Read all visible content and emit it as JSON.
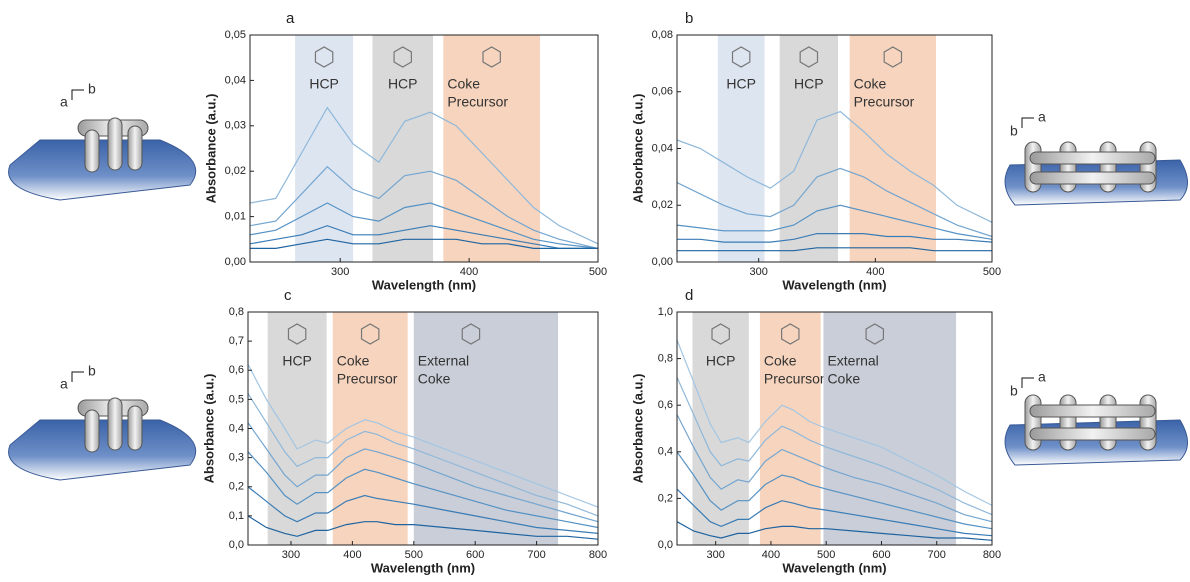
{
  "chart_data": [
    {
      "type": "line",
      "panel": "a",
      "x_label": "Wavelength (nm)",
      "y_label": "Absorbance (a.u.)",
      "xlim": [
        230,
        500
      ],
      "ylim": [
        0,
        0.05
      ],
      "xticks": [
        300,
        400,
        500
      ],
      "yticks": [
        {
          "value": 0,
          "label": "0,00"
        },
        {
          "value": 0.01,
          "label": "0,01"
        },
        {
          "value": 0.02,
          "label": "0,02"
        },
        {
          "value": 0.03,
          "label": "0,03"
        },
        {
          "value": 0.04,
          "label": "0,04"
        },
        {
          "value": 0.05,
          "label": "0,05"
        }
      ],
      "bands": [
        {
          "label": [
            "HCP"
          ],
          "x": [
            265,
            310
          ],
          "color": "#dde5f1"
        },
        {
          "label": [
            "HCP"
          ],
          "x": [
            325,
            372
          ],
          "color": "#d9d9d9"
        },
        {
          "label": [
            "Coke",
            "Precursor"
          ],
          "x": [
            380,
            455
          ],
          "color": "#f7d4be"
        }
      ],
      "x": [
        230,
        250,
        270,
        290,
        310,
        330,
        350,
        370,
        390,
        410,
        430,
        450,
        470,
        500
      ],
      "series": [
        {
          "color": "#8fb8da",
          "values": [
            0.013,
            0.014,
            0.024,
            0.034,
            0.026,
            0.022,
            0.031,
            0.033,
            0.03,
            0.024,
            0.018,
            0.012,
            0.008,
            0.004
          ]
        },
        {
          "color": "#74a6d0",
          "values": [
            0.008,
            0.009,
            0.015,
            0.021,
            0.016,
            0.014,
            0.019,
            0.02,
            0.018,
            0.014,
            0.01,
            0.007,
            0.005,
            0.003
          ]
        },
        {
          "color": "#5592c4",
          "values": [
            0.006,
            0.007,
            0.01,
            0.013,
            0.01,
            0.009,
            0.012,
            0.013,
            0.011,
            0.009,
            0.007,
            0.005,
            0.004,
            0.003
          ]
        },
        {
          "color": "#3a7cb5",
          "values": [
            0.004,
            0.005,
            0.006,
            0.008,
            0.006,
            0.006,
            0.007,
            0.008,
            0.007,
            0.006,
            0.005,
            0.004,
            0.003,
            0.003
          ]
        },
        {
          "color": "#1f64a0",
          "values": [
            0.003,
            0.003,
            0.004,
            0.005,
            0.004,
            0.004,
            0.005,
            0.005,
            0.005,
            0.004,
            0.004,
            0.003,
            0.003,
            0.003
          ]
        }
      ]
    },
    {
      "type": "line",
      "panel": "b",
      "x_label": "Wavelength (nm)",
      "y_label": "Absorbance (a.u.)",
      "xlim": [
        230,
        500
      ],
      "ylim": [
        0,
        0.08
      ],
      "xticks": [
        300,
        400,
        500
      ],
      "yticks": [
        {
          "value": 0,
          "label": "0,00"
        },
        {
          "value": 0.02,
          "label": "0,02"
        },
        {
          "value": 0.04,
          "label": "0,04"
        },
        {
          "value": 0.06,
          "label": "0,06"
        },
        {
          "value": 0.08,
          "label": "0,08"
        }
      ],
      "bands": [
        {
          "label": [
            "HCP"
          ],
          "x": [
            265,
            305
          ],
          "color": "#dde5f1"
        },
        {
          "label": [
            "HCP"
          ],
          "x": [
            318,
            368
          ],
          "color": "#d9d9d9"
        },
        {
          "label": [
            "Coke",
            "Precursor"
          ],
          "x": [
            378,
            452
          ],
          "color": "#f7d4be"
        }
      ],
      "x": [
        230,
        250,
        270,
        290,
        310,
        330,
        350,
        370,
        390,
        410,
        430,
        450,
        470,
        500
      ],
      "series": [
        {
          "color": "#8fb8da",
          "values": [
            0.043,
            0.04,
            0.035,
            0.03,
            0.026,
            0.032,
            0.05,
            0.053,
            0.046,
            0.038,
            0.032,
            0.027,
            0.02,
            0.014
          ]
        },
        {
          "color": "#74a6d0",
          "values": [
            0.028,
            0.024,
            0.02,
            0.017,
            0.016,
            0.02,
            0.03,
            0.033,
            0.03,
            0.025,
            0.021,
            0.017,
            0.013,
            0.009
          ]
        },
        {
          "color": "#5592c4",
          "values": [
            0.013,
            0.012,
            0.011,
            0.011,
            0.011,
            0.013,
            0.018,
            0.02,
            0.018,
            0.016,
            0.014,
            0.012,
            0.01,
            0.008
          ]
        },
        {
          "color": "#3a7cb5",
          "values": [
            0.008,
            0.008,
            0.007,
            0.007,
            0.007,
            0.008,
            0.01,
            0.01,
            0.01,
            0.009,
            0.009,
            0.008,
            0.008,
            0.007
          ]
        },
        {
          "color": "#1f64a0",
          "values": [
            0.004,
            0.004,
            0.004,
            0.004,
            0.004,
            0.004,
            0.005,
            0.005,
            0.005,
            0.005,
            0.005,
            0.004,
            0.004,
            0.004
          ]
        }
      ]
    },
    {
      "type": "line",
      "panel": "c",
      "x_label": "Wavelength (nm)",
      "y_label": "Absorbance (a.u.)",
      "xlim": [
        230,
        800
      ],
      "ylim": [
        0,
        0.8
      ],
      "xticks": [
        300,
        400,
        500,
        600,
        700,
        800
      ],
      "yticks": [
        {
          "value": 0,
          "label": "0,0"
        },
        {
          "value": 0.1,
          "label": "0,1"
        },
        {
          "value": 0.2,
          "label": "0,2"
        },
        {
          "value": 0.3,
          "label": "0,3"
        },
        {
          "value": 0.4,
          "label": "0,4"
        },
        {
          "value": 0.5,
          "label": "0,5"
        },
        {
          "value": 0.6,
          "label": "0,6"
        },
        {
          "value": 0.7,
          "label": "0,7"
        },
        {
          "value": 0.8,
          "label": "0,8"
        }
      ],
      "bands": [
        {
          "label": [
            "HCP"
          ],
          "x": [
            262,
            358
          ],
          "color": "#d9d9d9"
        },
        {
          "label": [
            "Coke",
            "Precursor"
          ],
          "x": [
            368,
            490
          ],
          "color": "#f7d4be"
        },
        {
          "label": [
            "External",
            "Coke"
          ],
          "x": [
            500,
            735
          ],
          "color": "#c9ced8"
        }
      ],
      "x": [
        230,
        260,
        290,
        310,
        340,
        360,
        390,
        420,
        440,
        470,
        500,
        550,
        600,
        650,
        700,
        750,
        800
      ],
      "series": [
        {
          "color": "#a3c6e3",
          "values": [
            0.62,
            0.5,
            0.4,
            0.33,
            0.36,
            0.35,
            0.4,
            0.43,
            0.42,
            0.39,
            0.37,
            0.33,
            0.29,
            0.25,
            0.21,
            0.17,
            0.13
          ]
        },
        {
          "color": "#8fb8da",
          "values": [
            0.52,
            0.42,
            0.32,
            0.27,
            0.3,
            0.3,
            0.36,
            0.39,
            0.38,
            0.35,
            0.33,
            0.29,
            0.25,
            0.21,
            0.17,
            0.14,
            0.1
          ]
        },
        {
          "color": "#74a6d0",
          "values": [
            0.42,
            0.33,
            0.24,
            0.2,
            0.24,
            0.24,
            0.3,
            0.33,
            0.32,
            0.3,
            0.28,
            0.24,
            0.2,
            0.17,
            0.14,
            0.11,
            0.08
          ]
        },
        {
          "color": "#5592c4",
          "values": [
            0.32,
            0.25,
            0.17,
            0.14,
            0.18,
            0.18,
            0.23,
            0.26,
            0.25,
            0.23,
            0.21,
            0.18,
            0.15,
            0.12,
            0.1,
            0.08,
            0.06
          ]
        },
        {
          "color": "#3a7cb5",
          "values": [
            0.2,
            0.15,
            0.1,
            0.08,
            0.11,
            0.11,
            0.15,
            0.17,
            0.16,
            0.15,
            0.14,
            0.12,
            0.1,
            0.08,
            0.06,
            0.05,
            0.04
          ]
        },
        {
          "color": "#1f64a0",
          "values": [
            0.1,
            0.06,
            0.04,
            0.03,
            0.05,
            0.05,
            0.07,
            0.08,
            0.08,
            0.07,
            0.07,
            0.06,
            0.05,
            0.04,
            0.03,
            0.03,
            0.02
          ]
        }
      ]
    },
    {
      "type": "line",
      "panel": "d",
      "x_label": "Wavelength (nm)",
      "y_label": "Absorbance (a.u.)",
      "xlim": [
        230,
        800
      ],
      "ylim": [
        0,
        1.0
      ],
      "xticks": [
        300,
        400,
        500,
        600,
        700,
        800
      ],
      "yticks": [
        {
          "value": 0,
          "label": "0,0"
        },
        {
          "value": 0.2,
          "label": "0,2"
        },
        {
          "value": 0.4,
          "label": "0,4"
        },
        {
          "value": 0.6,
          "label": "0,6"
        },
        {
          "value": 0.8,
          "label": "0,8"
        },
        {
          "value": 1.0,
          "label": "1,0"
        }
      ],
      "bands": [
        {
          "label": [
            "HCP"
          ],
          "x": [
            258,
            360
          ],
          "color": "#d9d9d9"
        },
        {
          "label": [
            "Coke",
            "Precursor"
          ],
          "x": [
            380,
            490
          ],
          "color": "#f7d4be"
        },
        {
          "label": [
            "External",
            "Coke"
          ],
          "x": [
            495,
            735
          ],
          "color": "#c9ced8"
        }
      ],
      "x": [
        230,
        260,
        290,
        310,
        340,
        360,
        390,
        420,
        440,
        470,
        500,
        550,
        600,
        650,
        700,
        750,
        800
      ],
      "series": [
        {
          "color": "#a3c6e3",
          "values": [
            0.88,
            0.7,
            0.52,
            0.44,
            0.46,
            0.44,
            0.53,
            0.6,
            0.58,
            0.53,
            0.5,
            0.46,
            0.42,
            0.36,
            0.3,
            0.23,
            0.17
          ]
        },
        {
          "color": "#8fb8da",
          "values": [
            0.72,
            0.56,
            0.4,
            0.34,
            0.37,
            0.36,
            0.45,
            0.51,
            0.49,
            0.45,
            0.42,
            0.38,
            0.34,
            0.29,
            0.24,
            0.18,
            0.13
          ]
        },
        {
          "color": "#74a6d0",
          "values": [
            0.56,
            0.42,
            0.29,
            0.24,
            0.28,
            0.27,
            0.36,
            0.41,
            0.39,
            0.36,
            0.33,
            0.29,
            0.26,
            0.22,
            0.18,
            0.13,
            0.1
          ]
        },
        {
          "color": "#5592c4",
          "values": [
            0.4,
            0.3,
            0.19,
            0.15,
            0.19,
            0.19,
            0.26,
            0.3,
            0.29,
            0.26,
            0.24,
            0.21,
            0.18,
            0.15,
            0.12,
            0.09,
            0.07
          ]
        },
        {
          "color": "#3a7cb5",
          "values": [
            0.24,
            0.17,
            0.1,
            0.08,
            0.11,
            0.11,
            0.16,
            0.19,
            0.18,
            0.16,
            0.15,
            0.13,
            0.11,
            0.09,
            0.07,
            0.05,
            0.04
          ]
        },
        {
          "color": "#1f64a0",
          "values": [
            0.1,
            0.06,
            0.04,
            0.03,
            0.05,
            0.05,
            0.07,
            0.08,
            0.08,
            0.07,
            0.07,
            0.06,
            0.05,
            0.04,
            0.03,
            0.03,
            0.02
          ]
        }
      ]
    }
  ],
  "crystals": [
    {
      "axes": [
        "b",
        "a"
      ]
    },
    {
      "axes": [
        "a",
        "b"
      ]
    },
    {
      "axes": [
        "b",
        "a"
      ]
    },
    {
      "axes": [
        "a",
        "b"
      ]
    }
  ]
}
